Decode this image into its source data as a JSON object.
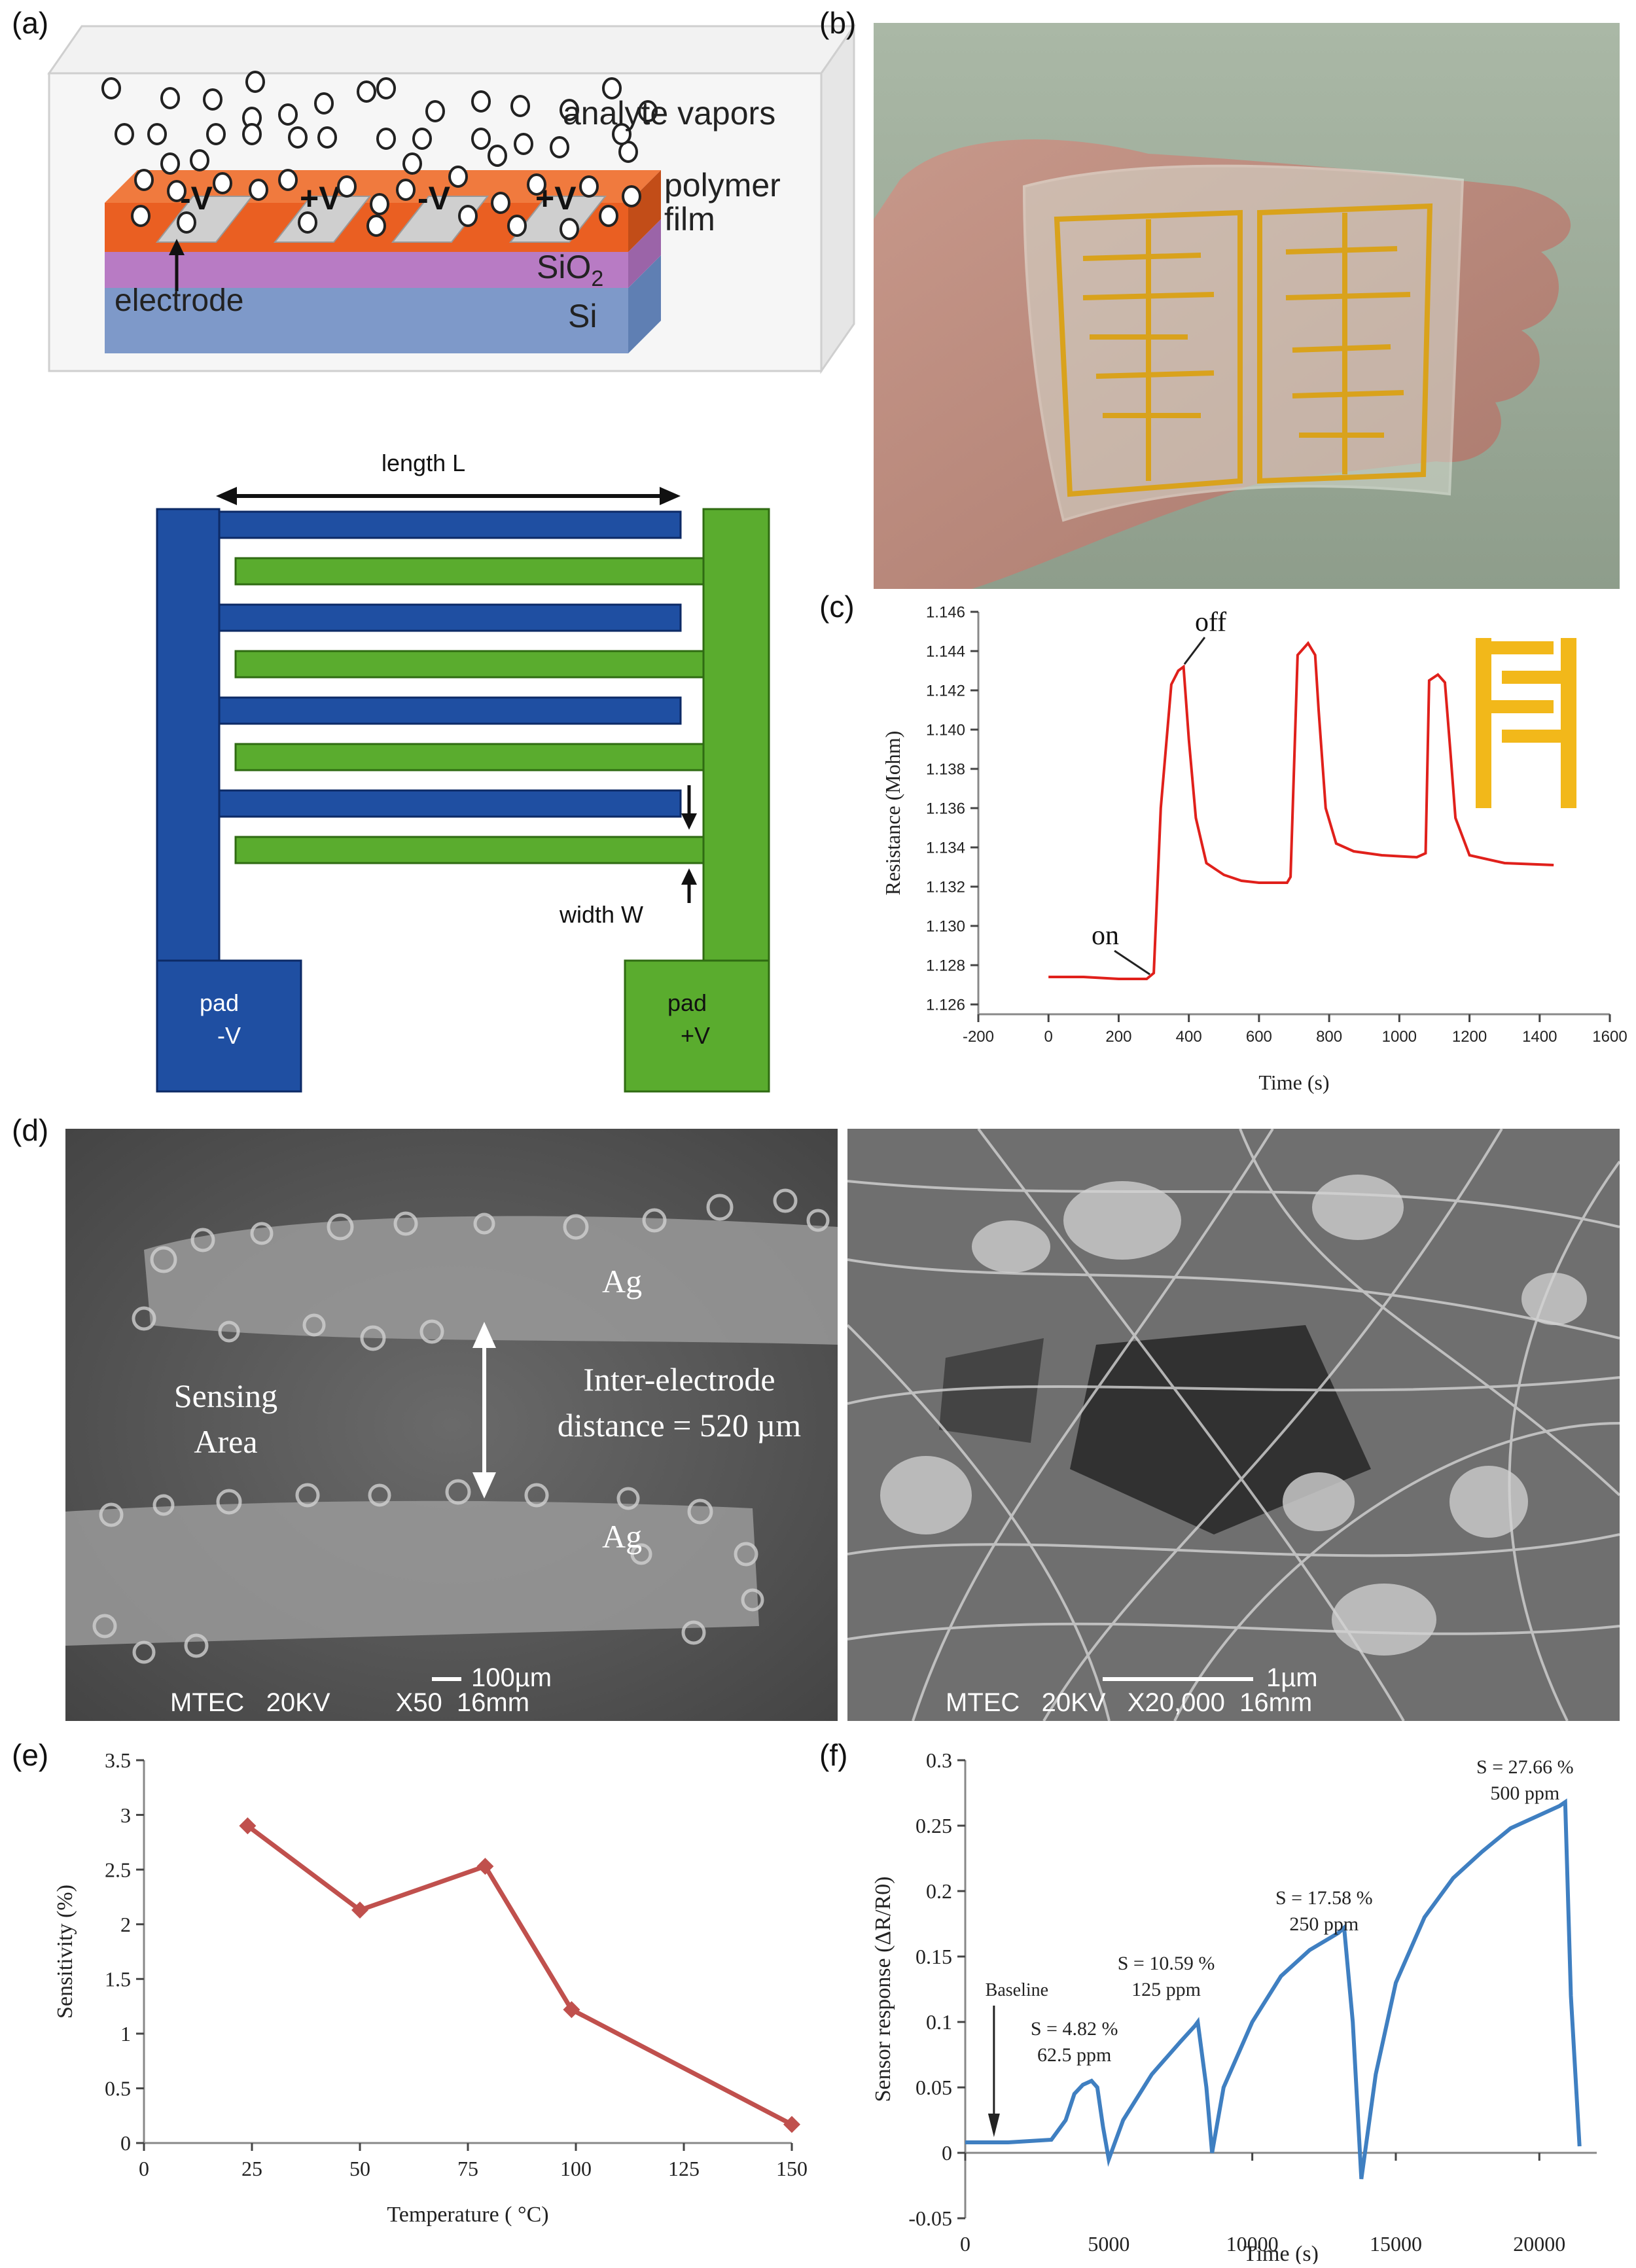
{
  "panels": {
    "a": {
      "label": "(a)",
      "analyte_label": "analyte vapors",
      "polymer_label_1": "polymer",
      "polymer_label_2": "film",
      "sio2_label": "SiO",
      "sio2_sub": "2",
      "si_label": "Si",
      "electrode_label": "electrode",
      "electrode_signs": [
        "-V",
        "+V",
        "-V",
        "+V"
      ],
      "length_label": "length L",
      "width_label": "width W",
      "pad_left_line1": "pad",
      "pad_left_line2": "-V",
      "pad_right_line1": "pad",
      "pad_right_line2": "+V"
    },
    "b": {
      "label": "(b)"
    },
    "c": {
      "label": "(c)"
    },
    "d": {
      "label": "(d)",
      "ag_top": "Ag",
      "ag_bottom": "Ag",
      "sensing_line1": "Sensing",
      "sensing_line2": "Area",
      "distance_line1": "Inter-electrode",
      "distance_line2": "distance = 520 µm",
      "left_scale": "100µm",
      "left_footer": "MTEC   20KV         X50  16mm",
      "right_scale": "1µm",
      "right_footer": "MTEC   20KV   X20,000  16mm"
    },
    "e": {
      "label": "(e)"
    },
    "f": {
      "label": "(f)"
    }
  },
  "chart_data": [
    {
      "id": "c",
      "type": "line",
      "xlabel": "Time (s)",
      "ylabel": "Resistance (Mohm)",
      "xlim": [
        -200,
        1600
      ],
      "ylim": [
        1.1255,
        1.146
      ],
      "xticks": [
        -200,
        0,
        200,
        400,
        600,
        800,
        1000,
        1200,
        1400,
        1600
      ],
      "yticks": [
        1.126,
        1.128,
        1.13,
        1.132,
        1.134,
        1.136,
        1.138,
        1.14,
        1.142,
        1.144,
        1.146
      ],
      "ytick_labels": [
        "1.126",
        "1.128",
        "1.130",
        "1.132",
        "1.134",
        "1.136",
        "1.138",
        "1.140",
        "1.142",
        "1.144",
        "1.146"
      ],
      "color": "#e0201b",
      "series": [
        {
          "x": [
            0,
            100,
            200,
            280,
            300,
            320,
            350,
            370,
            385,
            400,
            420,
            450,
            500,
            550,
            600,
            680,
            690,
            710,
            740,
            760,
            770,
            790,
            820,
            870,
            950,
            1050,
            1075,
            1085,
            1110,
            1130,
            1145,
            1160,
            1200,
            1300,
            1440
          ],
          "y": [
            1.1274,
            1.1274,
            1.1273,
            1.1273,
            1.1276,
            1.136,
            1.1423,
            1.143,
            1.1432,
            1.1395,
            1.1355,
            1.1332,
            1.1326,
            1.1323,
            1.1322,
            1.1322,
            1.1325,
            1.1438,
            1.1444,
            1.1438,
            1.141,
            1.136,
            1.1342,
            1.1338,
            1.1336,
            1.1335,
            1.1337,
            1.1425,
            1.1428,
            1.1424,
            1.139,
            1.1355,
            1.1336,
            1.1332,
            1.1331
          ]
        }
      ],
      "annotations": [
        {
          "text": "on",
          "x": 300,
          "y": 1.1274
        },
        {
          "text": "off",
          "x": 380,
          "y": 1.1432
        }
      ]
    },
    {
      "id": "e",
      "type": "line",
      "xlabel": "Temperature ( °C)",
      "ylabel": "Sensitivity (%)",
      "xlim": [
        0,
        150
      ],
      "ylim": [
        0,
        3.5
      ],
      "xticks": [
        0,
        25,
        50,
        75,
        100,
        125,
        150
      ],
      "yticks": [
        0,
        0.5,
        1,
        1.5,
        2,
        2.5,
        3,
        3.5
      ],
      "ytick_labels": [
        "0",
        "0.5",
        "1",
        "1.5",
        "2",
        "2.5",
        "3",
        "3.5"
      ],
      "color": "#c0504d",
      "series": [
        {
          "x": [
            24,
            50,
            79,
            99,
            150
          ],
          "y": [
            2.9,
            2.13,
            2.53,
            1.22,
            0.17
          ]
        }
      ]
    },
    {
      "id": "f",
      "type": "line",
      "xlabel": "Time (s)",
      "ylabel": "Sensor response (ΔR/R0)",
      "xlim": [
        0,
        22000
      ],
      "ylim": [
        -0.05,
        0.3
      ],
      "xticks": [
        0,
        5000,
        10000,
        15000,
        20000
      ],
      "yticks": [
        -0.05,
        0,
        0.05,
        0.1,
        0.15,
        0.2,
        0.25,
        0.3
      ],
      "ytick_labels": [
        "-0.05",
        "0",
        "0.05",
        "0.1",
        "0.15",
        "0.2",
        "0.25",
        "0.3"
      ],
      "color": "#3f7fc1",
      "series": [
        {
          "x": [
            0,
            1500,
            3000,
            3500,
            3800,
            4100,
            4400,
            4600,
            4800,
            5000,
            5500,
            6500,
            7500,
            8000,
            8100,
            8400,
            8600,
            9000,
            10000,
            11000,
            12000,
            13000,
            13200,
            13500,
            13800,
            14300,
            15000,
            16000,
            17000,
            18000,
            19000,
            20000,
            20700,
            20900,
            21100,
            21400
          ],
          "y": [
            0.008,
            0.008,
            0.01,
            0.025,
            0.045,
            0.052,
            0.055,
            0.05,
            0.02,
            -0.005,
            0.025,
            0.06,
            0.085,
            0.097,
            0.1,
            0.05,
            0.0,
            0.05,
            0.1,
            0.135,
            0.155,
            0.168,
            0.172,
            0.1,
            -0.02,
            0.06,
            0.13,
            0.18,
            0.21,
            0.23,
            0.248,
            0.258,
            0.265,
            0.268,
            0.12,
            0.005
          ]
        }
      ],
      "annotations": [
        {
          "text": "Baseline",
          "x": 1000,
          "y": 0.12
        },
        {
          "text": "S = 4.82 %",
          "x": 3800,
          "y": 0.09
        },
        {
          "text": "62.5 ppm",
          "x": 3800,
          "y": 0.07
        },
        {
          "text": "S = 10.59 %",
          "x": 7000,
          "y": 0.14
        },
        {
          "text": "125 ppm",
          "x": 7000,
          "y": 0.12
        },
        {
          "text": "S = 17.58 %",
          "x": 12500,
          "y": 0.19
        },
        {
          "text": "250 ppm",
          "x": 12500,
          "y": 0.17
        },
        {
          "text": "S = 27.66 %",
          "x": 19500,
          "y": 0.29
        },
        {
          "text": "500 ppm",
          "x": 19500,
          "y": 0.27
        }
      ]
    }
  ]
}
